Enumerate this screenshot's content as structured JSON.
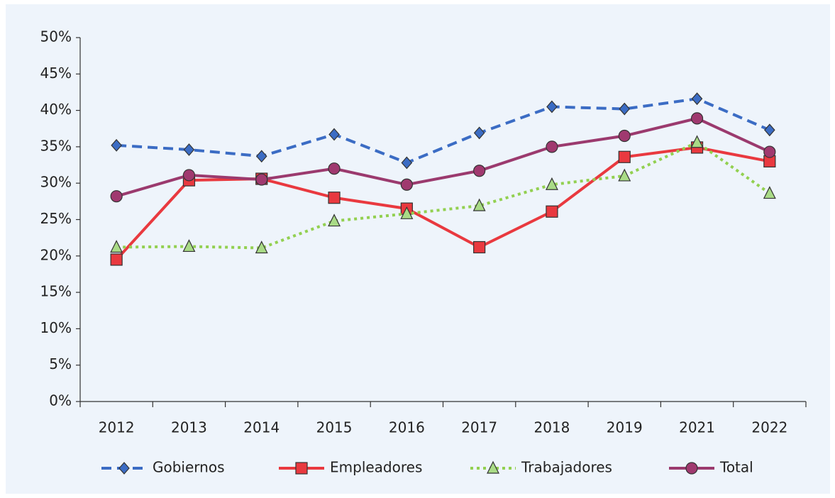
{
  "chart_data": {
    "type": "line",
    "categories": [
      "2012",
      "2013",
      "2014",
      "2015",
      "2016",
      "2017",
      "2018",
      "2019",
      "2021",
      "2022"
    ],
    "series": [
      {
        "name": "Gobiernos",
        "color": "#3b6cc4",
        "marker": "diamond",
        "dash": "dashed",
        "values": [
          35.2,
          34.6,
          33.7,
          36.7,
          32.8,
          36.9,
          40.5,
          40.2,
          41.6,
          37.3
        ]
      },
      {
        "name": "Empleadores",
        "color": "#e9393f",
        "marker": "square",
        "dash": "solid",
        "values": [
          19.5,
          30.4,
          30.6,
          28.0,
          26.5,
          21.2,
          26.1,
          33.6,
          34.9,
          33.0
        ]
      },
      {
        "name": "Trabajadores",
        "color": "#92d050",
        "marker": "triangle",
        "dash": "dotted",
        "values": [
          21.2,
          21.3,
          21.1,
          24.8,
          25.8,
          26.9,
          29.8,
          31.0,
          35.6,
          28.6
        ]
      },
      {
        "name": "Total",
        "color": "#9b3a6e",
        "marker": "circle",
        "dash": "solid",
        "values": [
          28.2,
          31.1,
          30.5,
          32.0,
          29.8,
          31.7,
          35.0,
          36.5,
          38.9,
          34.3
        ]
      }
    ],
    "ylim": [
      0,
      50
    ],
    "yticks": [
      {
        "value": 0,
        "label": "0%"
      },
      {
        "value": 5,
        "label": "5%"
      },
      {
        "value": 10,
        "label": "10%"
      },
      {
        "value": 15,
        "label": "15%"
      },
      {
        "value": 20,
        "label": "20%"
      },
      {
        "value": 25,
        "label": "25%"
      },
      {
        "value": 30,
        "label": "30%"
      },
      {
        "value": 35,
        "label": "35%"
      },
      {
        "value": 40,
        "label": "40%"
      },
      {
        "value": 45,
        "label": "45%"
      },
      {
        "value": 50,
        "label": "50%"
      }
    ],
    "grid": false,
    "legend": "bottom"
  }
}
